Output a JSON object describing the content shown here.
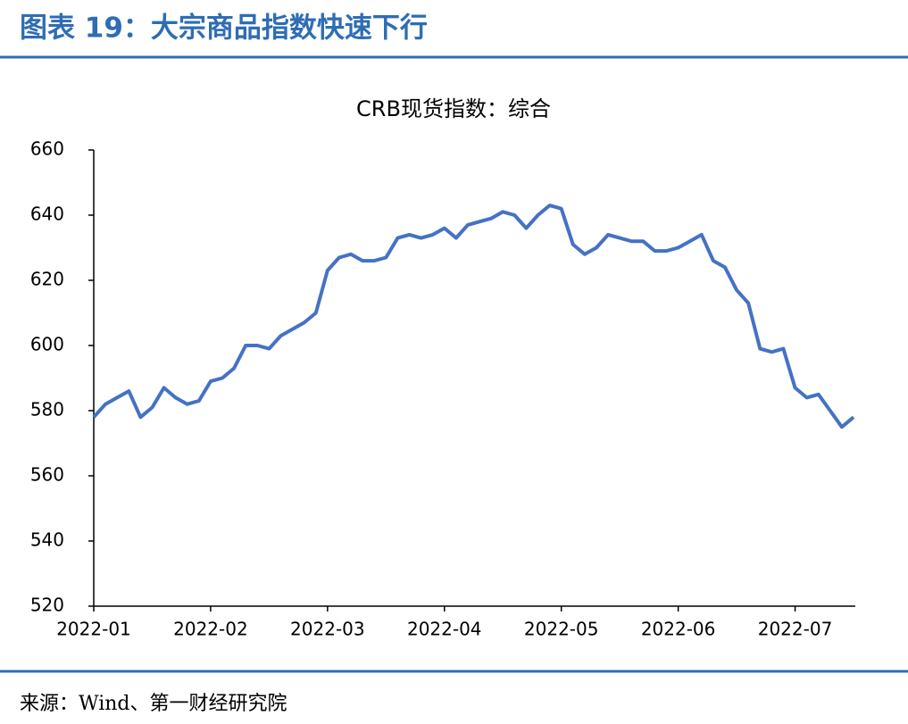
{
  "header": {
    "title": "图表 19：大宗商品指数快速下行"
  },
  "chart_data": {
    "type": "line",
    "title": "CRB现货指数：综合",
    "categories": [
      "2022-01",
      null,
      null,
      null,
      null,
      null,
      null,
      null,
      null,
      null,
      "2022-02",
      null,
      null,
      null,
      null,
      null,
      null,
      null,
      null,
      null,
      "2022-03",
      null,
      null,
      null,
      null,
      null,
      null,
      null,
      null,
      null,
      "2022-04",
      null,
      null,
      null,
      null,
      null,
      null,
      null,
      null,
      null,
      "2022-05",
      null,
      null,
      null,
      null,
      null,
      null,
      null,
      null,
      null,
      "2022-06",
      null,
      null,
      null,
      null,
      null,
      null,
      null,
      null,
      null,
      "2022-07",
      null,
      null,
      null,
      null,
      null
    ],
    "series": [
      {
        "name": "CRB现货指数：综合",
        "color": "#4472c4",
        "values": [
          578,
          582,
          584,
          586,
          578,
          581,
          587,
          584,
          582,
          583,
          589,
          590,
          593,
          600,
          600,
          599,
          603,
          605,
          607,
          610,
          623,
          627,
          628,
          626,
          626,
          627,
          633,
          634,
          633,
          634,
          636,
          633,
          637,
          638,
          639,
          641,
          640,
          636,
          640,
          643,
          642,
          631,
          628,
          630,
          634,
          633,
          632,
          632,
          629,
          629,
          630,
          632,
          634,
          626,
          624,
          617,
          613,
          599,
          598,
          599,
          587,
          584,
          585,
          580,
          575,
          578
        ]
      }
    ],
    "ylim": [
      520,
      660
    ],
    "yticks": [
      520,
      540,
      560,
      580,
      600,
      620,
      640,
      660
    ],
    "grid": false
  },
  "footer": {
    "source": "来源：Wind、第一财经研究院"
  }
}
